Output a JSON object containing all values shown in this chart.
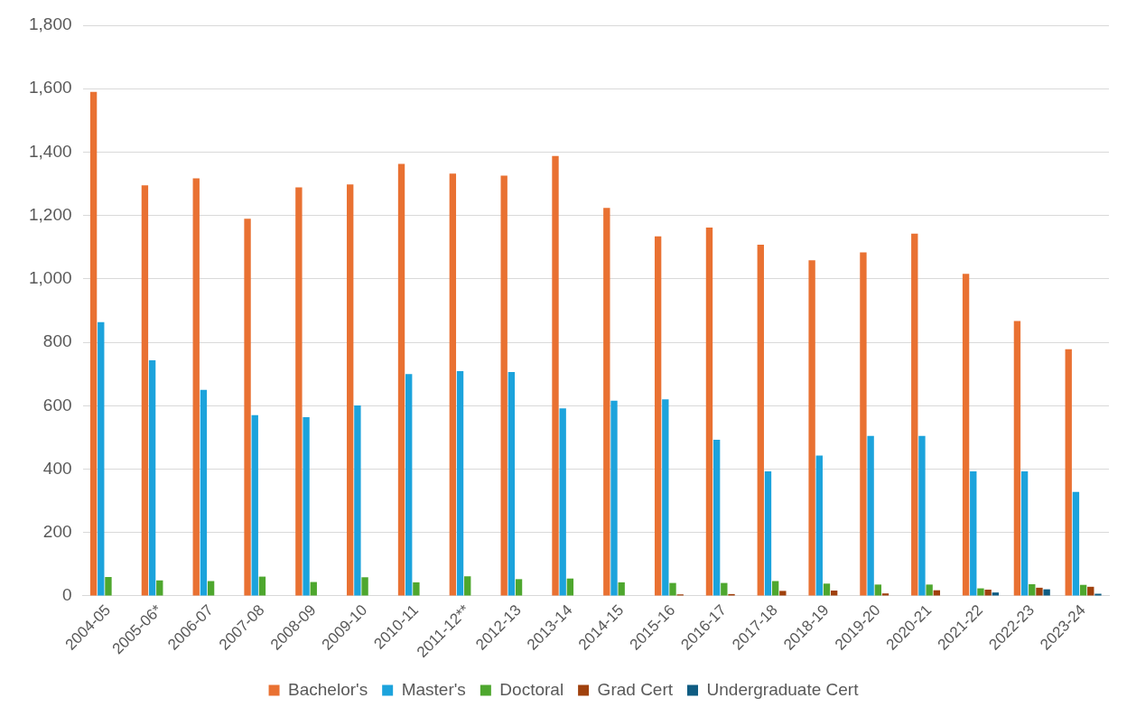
{
  "chart_data": {
    "type": "bar",
    "categories": [
      "2004-05",
      "2005-06*",
      "2006-07",
      "2007-08",
      "2008-09",
      "2009-10",
      "2010-11",
      "2011-12**",
      "2012-13",
      "2013-14",
      "2014-15",
      "2015-16",
      "2016-17",
      "2017-18",
      "2018-19",
      "2019-20",
      "2020-21",
      "2021-22",
      "2022-23",
      "2023-24"
    ],
    "series": [
      {
        "name": "Bachelor's",
        "color": "#e97132",
        "values": [
          1590,
          1295,
          1317,
          1190,
          1289,
          1298,
          1363,
          1332,
          1326,
          1388,
          1224,
          1134,
          1162,
          1108,
          1059,
          1084,
          1143,
          1016,
          867,
          778
        ]
      },
      {
        "name": "Master's",
        "color": "#1ca3dc",
        "values": [
          864,
          743,
          650,
          570,
          564,
          601,
          700,
          709,
          706,
          592,
          616,
          620,
          493,
          393,
          443,
          505,
          505,
          393,
          393,
          328
        ]
      },
      {
        "name": "Doctoral",
        "color": "#4ea72e",
        "values": [
          60,
          49,
          47,
          61,
          44,
          59,
          43,
          62,
          53,
          55,
          43,
          41,
          41,
          47,
          39,
          36,
          36,
          24,
          37,
          35
        ]
      },
      {
        "name": "Grad Cert",
        "color": "#a0410d",
        "values": [
          null,
          null,
          null,
          null,
          null,
          null,
          null,
          null,
          null,
          null,
          null,
          5,
          6,
          16,
          17,
          8,
          18,
          20,
          26,
          29
        ]
      },
      {
        "name": "Undergraduate Cert",
        "color": "#0f5c82",
        "values": [
          null,
          null,
          null,
          null,
          null,
          null,
          null,
          null,
          null,
          null,
          null,
          null,
          null,
          null,
          null,
          null,
          null,
          11,
          21,
          7
        ]
      }
    ],
    "ylim": [
      0,
      1800
    ],
    "yticks": [
      0,
      200,
      400,
      600,
      800,
      {
        "value": 1000,
        "label": "1,000"
      },
      {
        "value": 1200,
        "label": "1,200"
      },
      {
        "value": 1400,
        "label": "1,400"
      },
      {
        "value": 1600,
        "label": "1,600"
      },
      {
        "value": 1800,
        "label": "1,800"
      }
    ],
    "grid": "y",
    "legend": "bottom"
  }
}
